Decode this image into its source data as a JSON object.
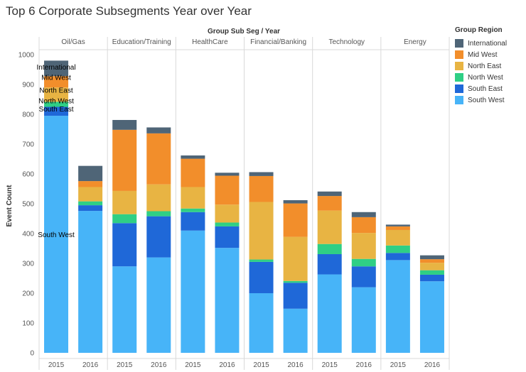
{
  "title": "Top 6 Corporate Subsegments Year over Year",
  "chart_data": {
    "type": "bar",
    "stacked": true,
    "title": "Top 6 Corporate Subsegments Year over Year",
    "header_label": "Group Sub Seg  /  Year",
    "ylabel": "Event Count",
    "ylim": [
      0,
      1000
    ],
    "yticks": [
      0,
      100,
      200,
      300,
      400,
      500,
      600,
      700,
      800,
      900,
      1000
    ],
    "grid": false,
    "groups": [
      "Oil/Gas",
      "Education/Training",
      "HealthCare",
      "Financial/Banking",
      "Technology",
      "Energy"
    ],
    "years": [
      "2015",
      "2016"
    ],
    "categories": [
      "Oil/Gas 2015",
      "Oil/Gas 2016",
      "Education/Training 2015",
      "Education/Training 2016",
      "HealthCare 2015",
      "HealthCare 2016",
      "Financial/Banking 2015",
      "Financial/Banking 2016",
      "Technology 2015",
      "Technology 2016",
      "Energy 2015",
      "Energy 2016"
    ],
    "legend": {
      "title": "Group Region",
      "position": "right"
    },
    "series": [
      {
        "name": "South West",
        "color": "#47b4f8",
        "values": [
          795,
          476,
          290,
          320,
          410,
          352,
          200,
          148,
          263,
          220,
          311,
          240
        ]
      },
      {
        "name": "South East",
        "color": "#1f68d8",
        "values": [
          30,
          19,
          145,
          138,
          62,
          72,
          105,
          87,
          68,
          70,
          24,
          22
        ]
      },
      {
        "name": "North West",
        "color": "#2fcf85",
        "values": [
          17,
          13,
          30,
          17,
          12,
          13,
          8,
          6,
          34,
          25,
          25,
          15
        ]
      },
      {
        "name": "North East",
        "color": "#e8b443",
        "values": [
          48,
          48,
          78,
          90,
          72,
          60,
          193,
          148,
          112,
          87,
          52,
          25
        ]
      },
      {
        "name": "Mid West",
        "color": "#f28e2b",
        "values": [
          38,
          20,
          205,
          171,
          95,
          97,
          87,
          112,
          49,
          53,
          12,
          12
        ]
      },
      {
        "name": "International",
        "color": "#4f6577",
        "values": [
          52,
          51,
          33,
          20,
          11,
          10,
          13,
          11,
          15,
          17,
          6,
          13
        ]
      }
    ],
    "annotations": [
      {
        "text": "International",
        "category": "Oil/Gas 2015",
        "y": 958
      },
      {
        "text": "Mid West",
        "category": "Oil/Gas 2015",
        "y": 924
      },
      {
        "text": "North East",
        "category": "Oil/Gas 2015",
        "y": 881
      },
      {
        "text": "North West",
        "category": "Oil/Gas 2015",
        "y": 845
      },
      {
        "text": "South East",
        "category": "Oil/Gas 2015",
        "y": 818
      },
      {
        "text": "South West",
        "category": "Oil/Gas 2015",
        "y": 397
      }
    ]
  }
}
